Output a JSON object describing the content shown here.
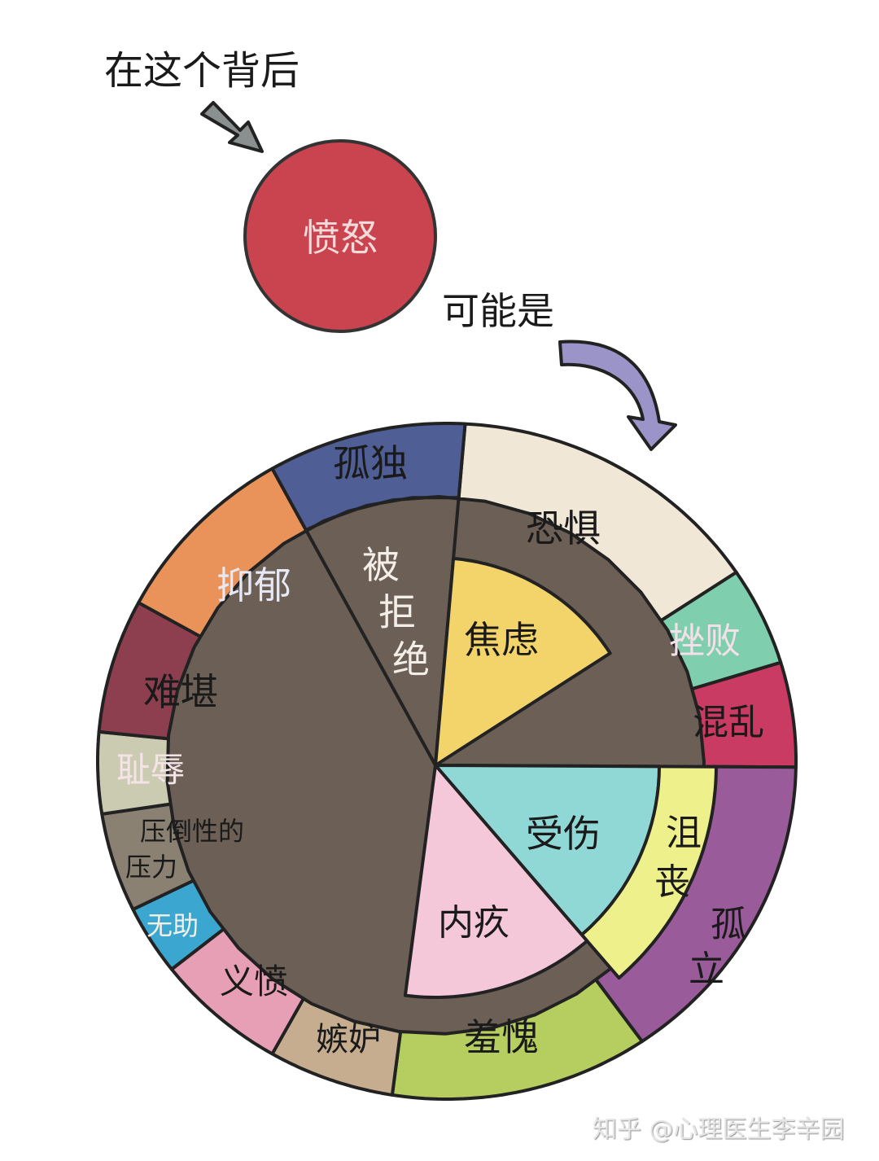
{
  "top_text": "在这个背后",
  "center_emotion": {
    "label": "愤怒",
    "color": "#c9444f"
  },
  "middle_text": "可能是",
  "watermark": "知乎 @心理医生李辛园",
  "pie": {
    "outer": [
      {
        "id": "lonely",
        "label": "孤独",
        "color": "#f1e7d6"
      },
      {
        "id": "fear",
        "label": "恐惧",
        "color": "#7fcfae"
      },
      {
        "id": "frustration",
        "label": "挫败",
        "color": "#c93b62"
      },
      {
        "id": "confusion",
        "label": "混乱",
        "color": "#9a5b9b"
      },
      {
        "id": "isolation",
        "label": "孤立",
        "color": "#b6cd5f"
      },
      {
        "id": "shame",
        "label": "羞愧",
        "color": "#c6ad90"
      },
      {
        "id": "jealousy",
        "label": "嫉妒",
        "color": "#e79fb5"
      },
      {
        "id": "indignation",
        "label": "义愤",
        "color": "#3ba6cf"
      },
      {
        "id": "helpless",
        "label": "无助",
        "color": "#8a8172"
      },
      {
        "id": "overwhelming",
        "label": "压倒性的压力",
        "color": "#cacbb1"
      },
      {
        "id": "humiliation",
        "label": "耻辱",
        "color": "#8d3f4f"
      },
      {
        "id": "embarrassed",
        "label": "难堪",
        "color": "#e9935a"
      },
      {
        "id": "depression",
        "label": "抑郁",
        "color": "#4f5f96"
      }
    ],
    "inner": [
      {
        "id": "rejected",
        "label": "被拒绝",
        "color": "#6b5f56"
      },
      {
        "id": "anxiety",
        "label": "焦虑",
        "color": "#f2d46b"
      },
      {
        "id": "dejected",
        "label": "沮丧",
        "color": "#eef08b"
      },
      {
        "id": "hurt",
        "label": "受伤",
        "color": "#8fd8d6"
      },
      {
        "id": "guilt",
        "label": "内疚",
        "color": "#f5c8d9"
      }
    ]
  }
}
